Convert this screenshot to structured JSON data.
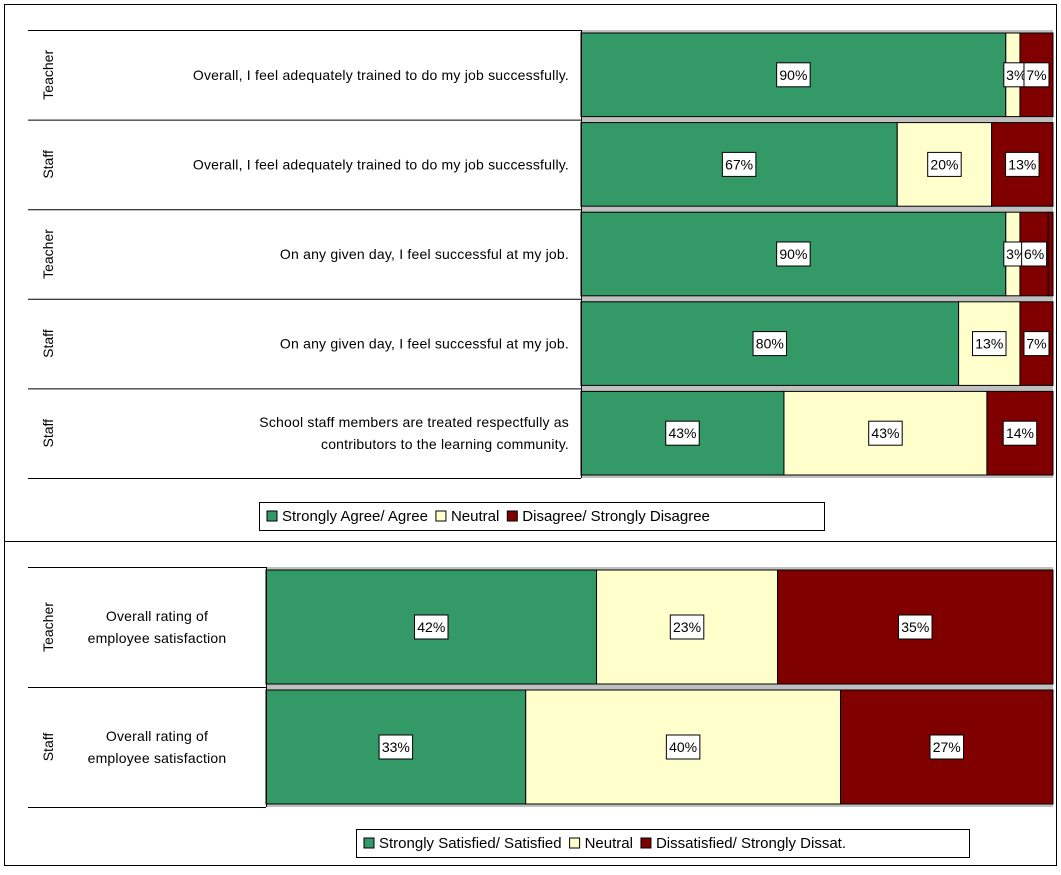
{
  "colors": {
    "agree": "#339966",
    "neutral": "#FFFFCC",
    "disagree": "#800000",
    "separator": "#C0C0C0",
    "border": "#000000"
  },
  "chart_data": [
    {
      "type": "bar",
      "orientation": "horizontal",
      "stacked": true,
      "xlim": [
        0,
        100
      ],
      "legend_position": "bottom",
      "legend": [
        "Strongly Agree/ Agree",
        "Neutral",
        "Disagree/ Strongly Disagree"
      ],
      "rows": [
        {
          "group": "Teacher",
          "question": [
            "Overall, I feel adequately trained to do my job successfully."
          ],
          "values": [
            90,
            3,
            7
          ]
        },
        {
          "group": "Staff",
          "question": [
            "Overall, I feel adequately trained to do my job successfully."
          ],
          "values": [
            67,
            20,
            13
          ]
        },
        {
          "group": "Teacher",
          "question": [
            "On any given day, I feel successful at my job."
          ],
          "values": [
            90,
            3,
            6
          ]
        },
        {
          "group": "Staff",
          "question": [
            "On any given day, I feel successful at my job."
          ],
          "values": [
            80,
            13,
            7
          ]
        },
        {
          "group": "Staff",
          "question": [
            "School staff members are treated respectfully as",
            "contributors to the learning community."
          ],
          "values": [
            43,
            43,
            14
          ]
        }
      ]
    },
    {
      "type": "bar",
      "orientation": "horizontal",
      "stacked": true,
      "xlim": [
        0,
        100
      ],
      "legend_position": "bottom",
      "legend": [
        "Strongly Satisfied/ Satisfied",
        "Neutral",
        "Dissatisfied/ Strongly Dissat."
      ],
      "rows": [
        {
          "group": "Teacher",
          "question": [
            "Overall rating of",
            "employee satisfaction"
          ],
          "values": [
            42,
            23,
            35
          ]
        },
        {
          "group": "Staff",
          "question": [
            "Overall rating of",
            "employee satisfaction"
          ],
          "values": [
            33,
            40,
            27
          ]
        }
      ]
    }
  ]
}
